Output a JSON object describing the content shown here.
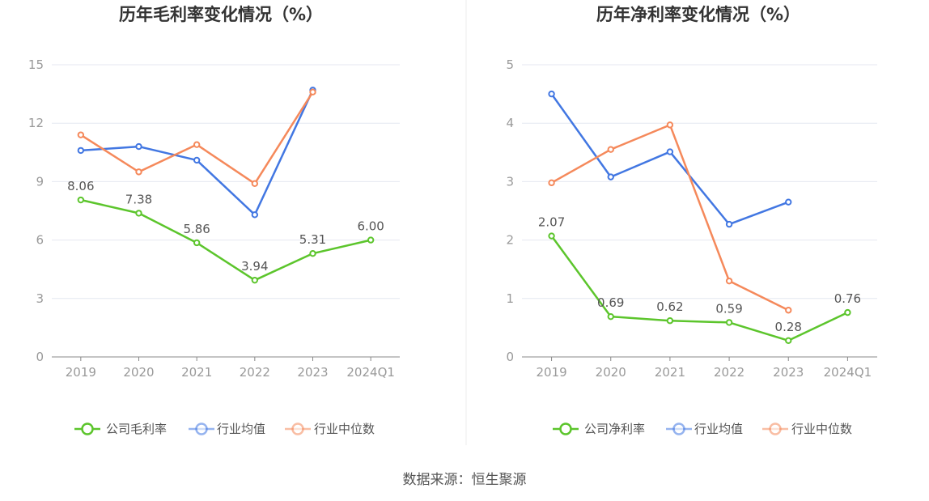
{
  "source_text": "数据来源：恒生聚源",
  "colors": {
    "company": "#5cc52c",
    "average": "#4277e2",
    "median": "#f5895b",
    "grid": "#e4e7f0",
    "axis": "#888888"
  },
  "chart_data": [
    {
      "type": "line",
      "title": "历年毛利率变化情况（%）",
      "categories": [
        "2019",
        "2020",
        "2021",
        "2022",
        "2023",
        "2024Q1"
      ],
      "yticks": [
        "0",
        "3",
        "6",
        "9",
        "12",
        "15"
      ],
      "ylim": [
        0,
        15
      ],
      "grid": true,
      "legend_position": "bottom",
      "series": [
        {
          "name": "公司毛利率",
          "key": "company",
          "values": [
            8.06,
            7.38,
            5.86,
            3.94,
            5.31,
            6.0
          ],
          "labels": [
            "8.06",
            "7.38",
            "5.86",
            "3.94",
            "5.31",
            "6.00"
          ]
        },
        {
          "name": "行业均值",
          "key": "average",
          "values": [
            10.6,
            10.8,
            10.1,
            7.3,
            13.7,
            null
          ]
        },
        {
          "name": "行业中位数",
          "key": "median",
          "values": [
            11.4,
            9.5,
            10.9,
            8.9,
            13.6,
            null
          ]
        }
      ]
    },
    {
      "type": "line",
      "title": "历年净利率变化情况（%）",
      "categories": [
        "2019",
        "2020",
        "2021",
        "2022",
        "2023",
        "2024Q1"
      ],
      "yticks": [
        "0",
        "1",
        "2",
        "3",
        "4",
        "5"
      ],
      "ylim": [
        0,
        5
      ],
      "grid": true,
      "legend_position": "bottom",
      "series": [
        {
          "name": "公司净利率",
          "key": "company",
          "values": [
            2.07,
            0.69,
            0.62,
            0.59,
            0.28,
            0.76
          ],
          "labels": [
            "2.07",
            "0.69",
            "0.62",
            "0.59",
            "0.28",
            "0.76"
          ]
        },
        {
          "name": "行业均值",
          "key": "average",
          "values": [
            4.5,
            3.08,
            3.51,
            2.27,
            2.65,
            null
          ]
        },
        {
          "name": "行业中位数",
          "key": "median",
          "values": [
            2.98,
            3.55,
            3.97,
            1.3,
            0.8,
            null
          ]
        }
      ]
    }
  ]
}
